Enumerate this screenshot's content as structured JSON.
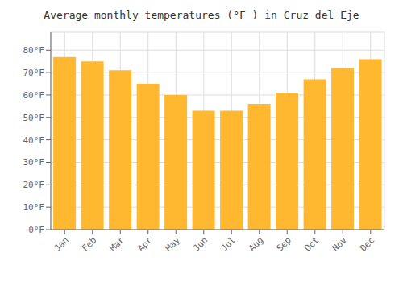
{
  "chart_data": {
    "type": "bar",
    "title": "Average monthly temperatures (°F ) in Cruz del Eje",
    "categories": [
      "Jan",
      "Feb",
      "Mar",
      "Apr",
      "May",
      "Jun",
      "Jul",
      "Aug",
      "Sep",
      "Oct",
      "Nov",
      "Dec"
    ],
    "values": [
      77,
      75,
      71,
      65,
      60,
      53,
      53,
      56,
      61,
      67,
      72,
      76
    ],
    "color": "#FFB830",
    "ylim": [
      0,
      88
    ],
    "yticks": [
      {
        "value": 0,
        "label": "0°F"
      },
      {
        "value": 10,
        "label": "10°F"
      },
      {
        "value": 20,
        "label": "20°F"
      },
      {
        "value": 30,
        "label": "30°F"
      },
      {
        "value": 40,
        "label": "40°F"
      },
      {
        "value": 50,
        "label": "50°F"
      },
      {
        "value": 60,
        "label": "60°F"
      },
      {
        "value": 70,
        "label": "70°F"
      },
      {
        "value": 80,
        "label": "80°F"
      }
    ],
    "grid": true
  }
}
